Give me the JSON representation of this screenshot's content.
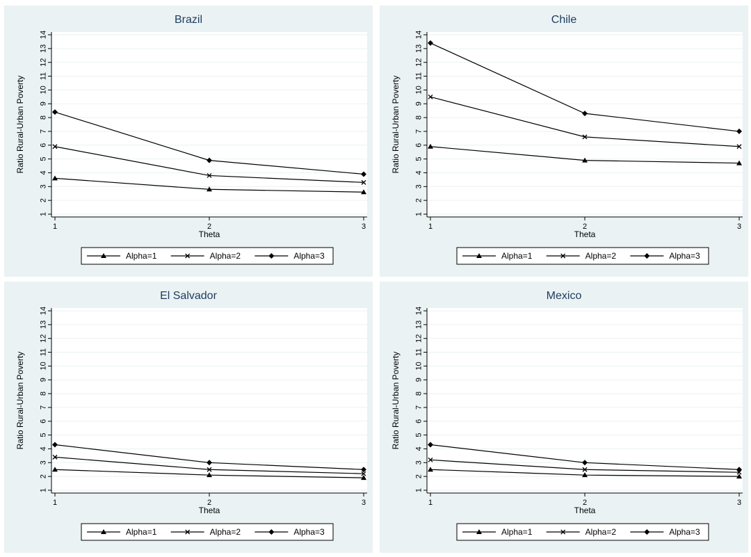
{
  "chart_data": [
    {
      "type": "line",
      "title": "Brazil",
      "xlabel": "Theta",
      "ylabel": "Ratio Rural-Urban Poverty",
      "x": [
        1,
        2,
        3
      ],
      "xticks": [
        "1",
        "2",
        "3"
      ],
      "yticks": [
        "1",
        "2",
        "3",
        "4",
        "5",
        "6",
        "7",
        "8",
        "9",
        "10",
        "11",
        "12",
        "13",
        "14"
      ],
      "ylim": [
        1,
        14
      ],
      "grid": true,
      "legend_position": "bottom",
      "series": [
        {
          "name": "Alpha=1",
          "marker": "triangle",
          "values": [
            3.6,
            2.8,
            2.6
          ]
        },
        {
          "name": "Alpha=2",
          "marker": "x",
          "values": [
            5.9,
            3.8,
            3.3
          ]
        },
        {
          "name": "Alpha=3",
          "marker": "diamond",
          "values": [
            8.4,
            4.9,
            3.9
          ]
        }
      ]
    },
    {
      "type": "line",
      "title": "Chile",
      "xlabel": "Theta",
      "ylabel": "Ratio Rural-Urban Poverty",
      "x": [
        1,
        2,
        3
      ],
      "xticks": [
        "1",
        "2",
        "3"
      ],
      "yticks": [
        "1",
        "2",
        "3",
        "4",
        "5",
        "6",
        "7",
        "8",
        "9",
        "10",
        "11",
        "12",
        "13",
        "14"
      ],
      "ylim": [
        1,
        14
      ],
      "grid": true,
      "legend_position": "bottom",
      "series": [
        {
          "name": "Alpha=1",
          "marker": "triangle",
          "values": [
            5.9,
            4.9,
            4.7
          ]
        },
        {
          "name": "Alpha=2",
          "marker": "x",
          "values": [
            9.5,
            6.6,
            5.9
          ]
        },
        {
          "name": "Alpha=3",
          "marker": "diamond",
          "values": [
            13.4,
            8.3,
            7.0
          ]
        }
      ]
    },
    {
      "type": "line",
      "title": "El Salvador",
      "xlabel": "Theta",
      "ylabel": "Ratio Rural-Urban Poverty",
      "x": [
        1,
        2,
        3
      ],
      "xticks": [
        "1",
        "2",
        "3"
      ],
      "yticks": [
        "1",
        "2",
        "3",
        "4",
        "5",
        "6",
        "7",
        "8",
        "9",
        "10",
        "11",
        "12",
        "13",
        "14"
      ],
      "ylim": [
        1,
        14
      ],
      "grid": true,
      "legend_position": "bottom",
      "series": [
        {
          "name": "Alpha=1",
          "marker": "triangle",
          "values": [
            2.5,
            2.1,
            1.9
          ]
        },
        {
          "name": "Alpha=2",
          "marker": "x",
          "values": [
            3.4,
            2.5,
            2.2
          ]
        },
        {
          "name": "Alpha=3",
          "marker": "diamond",
          "values": [
            4.3,
            3.0,
            2.5
          ]
        }
      ]
    },
    {
      "type": "line",
      "title": "Mexico",
      "xlabel": "Theta",
      "ylabel": "Ratio Rural-Urban Poverty",
      "x": [
        1,
        2,
        3
      ],
      "xticks": [
        "1",
        "2",
        "3"
      ],
      "yticks": [
        "1",
        "2",
        "3",
        "4",
        "5",
        "6",
        "7",
        "8",
        "9",
        "10",
        "11",
        "12",
        "13",
        "14"
      ],
      "ylim": [
        1,
        14
      ],
      "grid": true,
      "legend_position": "bottom",
      "series": [
        {
          "name": "Alpha=1",
          "marker": "triangle",
          "values": [
            2.5,
            2.1,
            2.0
          ]
        },
        {
          "name": "Alpha=2",
          "marker": "x",
          "values": [
            3.2,
            2.5,
            2.3
          ]
        },
        {
          "name": "Alpha=3",
          "marker": "diamond",
          "values": [
            4.3,
            3.0,
            2.5
          ]
        }
      ]
    }
  ],
  "colors": {
    "panel_background": "#eaf2f3",
    "plot_background": "#ffffff",
    "gridline": "#eaf2f3",
    "line": "#000000",
    "title": "#1e3a5f"
  }
}
